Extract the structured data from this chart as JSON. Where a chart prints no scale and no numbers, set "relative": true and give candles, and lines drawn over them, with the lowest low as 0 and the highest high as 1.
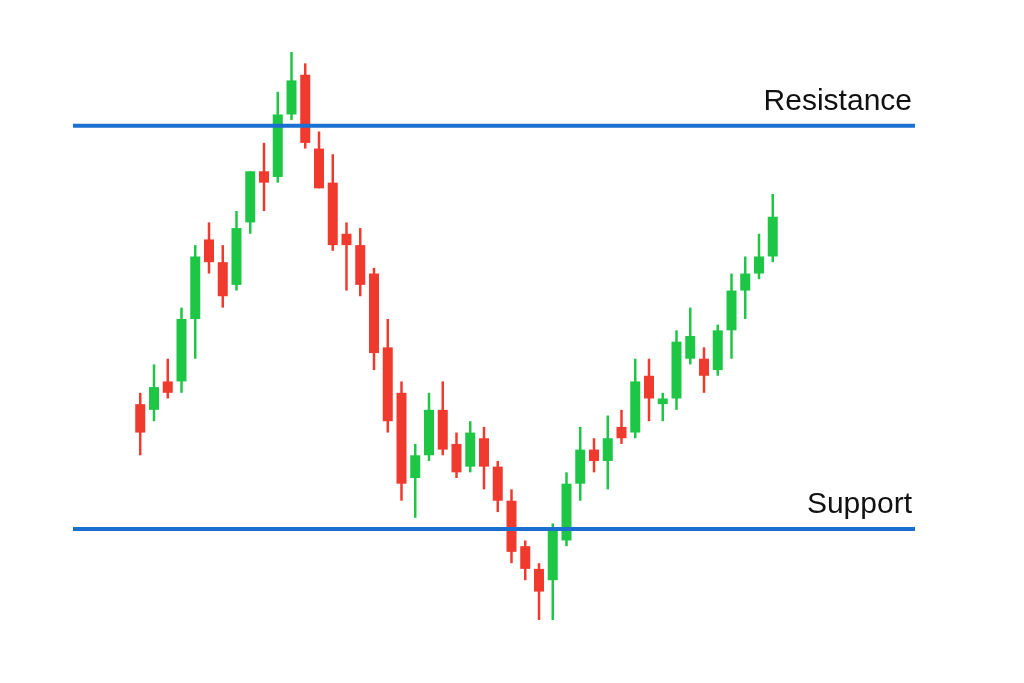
{
  "chart_data": {
    "type": "candlestick",
    "relative": true,
    "categories": [
      null,
      null,
      null,
      null,
      null,
      null,
      null,
      null,
      null,
      null,
      null,
      null,
      null,
      null,
      null,
      null,
      null,
      null,
      null,
      null,
      null,
      null,
      null,
      null,
      null,
      null,
      null,
      null,
      null,
      null,
      null,
      null,
      null,
      null,
      null,
      null,
      null,
      null,
      null,
      null,
      null,
      null,
      null,
      null,
      null,
      null,
      null
    ],
    "ohlc": [
      [
        0.38,
        0.4,
        0.29,
        0.33
      ],
      [
        0.37,
        0.45,
        0.35,
        0.41
      ],
      [
        0.42,
        0.46,
        0.39,
        0.4
      ],
      [
        0.42,
        0.55,
        0.4,
        0.53
      ],
      [
        0.53,
        0.66,
        0.46,
        0.64
      ],
      [
        0.67,
        0.7,
        0.61,
        0.63
      ],
      [
        0.63,
        0.66,
        0.55,
        0.57
      ],
      [
        0.59,
        0.72,
        0.58,
        0.69
      ],
      [
        0.7,
        0.79,
        0.68,
        0.79
      ],
      [
        0.79,
        0.84,
        0.72,
        0.77
      ],
      [
        0.78,
        0.93,
        0.77,
        0.89
      ],
      [
        0.89,
        1,
        0.88,
        0.95
      ],
      [
        0.96,
        0.98,
        0.83,
        0.84
      ],
      [
        0.83,
        0.86,
        0.76,
        0.76
      ],
      [
        0.77,
        0.82,
        0.65,
        0.66
      ],
      [
        0.68,
        0.7,
        0.58,
        0.66
      ],
      [
        0.66,
        0.69,
        0.57,
        0.59
      ],
      [
        0.61,
        0.62,
        0.44,
        0.47
      ],
      [
        0.48,
        0.53,
        0.33,
        0.35
      ],
      [
        0.4,
        0.42,
        0.21,
        0.24
      ],
      [
        0.25,
        0.31,
        0.18,
        0.29
      ],
      [
        0.29,
        0.4,
        0.28,
        0.37
      ],
      [
        0.37,
        0.42,
        0.29,
        0.3
      ],
      [
        0.31,
        0.33,
        0.25,
        0.26
      ],
      [
        0.27,
        0.35,
        0.26,
        0.33
      ],
      [
        0.32,
        0.34,
        0.23,
        0.27
      ],
      [
        0.27,
        0.28,
        0.19,
        0.21
      ],
      [
        0.21,
        0.23,
        0.1,
        0.12
      ],
      [
        0.13,
        0.14,
        0.07,
        0.09
      ],
      [
        0.09,
        0.1,
        0,
        0.05
      ],
      [
        0.07,
        0.17,
        0,
        0.16
      ],
      [
        0.14,
        0.26,
        0.13,
        0.24
      ],
      [
        0.24,
        0.34,
        0.21,
        0.3
      ],
      [
        0.3,
        0.32,
        0.26,
        0.28
      ],
      [
        0.28,
        0.36,
        0.23,
        0.32
      ],
      [
        0.34,
        0.37,
        0.31,
        0.32
      ],
      [
        0.33,
        0.46,
        0.32,
        0.42
      ],
      [
        0.43,
        0.46,
        0.35,
        0.39
      ],
      [
        0.38,
        0.4,
        0.35,
        0.39
      ],
      [
        0.39,
        0.51,
        0.37,
        0.49
      ],
      [
        0.46,
        0.55,
        0.45,
        0.5
      ],
      [
        0.46,
        0.48,
        0.4,
        0.43
      ],
      [
        0.44,
        0.52,
        0.43,
        0.51
      ],
      [
        0.51,
        0.61,
        0.46,
        0.58
      ],
      [
        0.58,
        0.64,
        0.53,
        0.61
      ],
      [
        0.61,
        0.68,
        0.6,
        0.64
      ],
      [
        0.64,
        0.75,
        0.63,
        0.71
      ]
    ],
    "colors": [
      "#f03a2e",
      "#1ec646",
      "#f03a2e",
      "#1ec646",
      "#1ec646",
      "#f03a2e",
      "#f03a2e",
      "#1ec646",
      "#1ec646",
      "#f03a2e",
      "#1ec646",
      "#1ec646",
      "#f03a2e",
      "#f03a2e",
      "#f03a2e",
      "#f03a2e",
      "#f03a2e",
      "#f03a2e",
      "#f03a2e",
      "#f03a2e",
      "#1ec646",
      "#1ec646",
      "#f03a2e",
      "#f03a2e",
      "#1ec646",
      "#f03a2e",
      "#f03a2e",
      "#f03a2e",
      "#f03a2e",
      "#f03a2e",
      "#1ec646",
      "#1ec646",
      "#1ec646",
      "#f03a2e",
      "#1ec646",
      "#f03a2e",
      "#1ec646",
      "#f03a2e",
      "#1ec646",
      "#1ec646",
      "#1ec646",
      "#f03a2e",
      "#1ec646",
      "#1ec646",
      "#1ec646",
      "#1ec646",
      "#1ec646"
    ],
    "ref_lines": [
      {
        "axis": "y",
        "value": 0.87,
        "label": "Resistance",
        "color": "#1a6fd1"
      },
      {
        "axis": "y",
        "value": 0.16,
        "label": "Support",
        "color": "#1a6fd1"
      }
    ]
  }
}
